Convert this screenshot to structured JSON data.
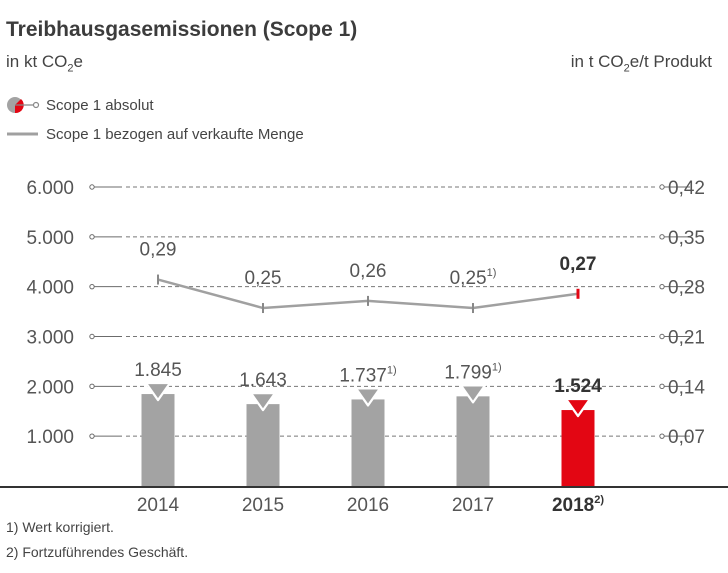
{
  "title": "Treibhausgasemissionen (Scope 1)",
  "unit_left_parts": [
    "in kt CO",
    "2",
    "e"
  ],
  "unit_right_parts": [
    "in t CO",
    "2",
    "e/t Produkt"
  ],
  "legend": [
    {
      "label": "Scope 1 absolut",
      "icon": "bar-marker-icon"
    },
    {
      "label": "Scope 1 bezogen auf verkaufte Menge",
      "icon": "line-icon"
    }
  ],
  "colors": {
    "bar": "#a3a3a3",
    "highlight": "#e30613",
    "line": "#a0a0a0",
    "axis": "#6b6b6b"
  },
  "chart_data": {
    "type": "bar",
    "title": "Treibhausgasemissionen (Scope 1)",
    "categories": [
      "2014",
      "2015",
      "2016",
      "2017",
      "2018"
    ],
    "category_superscripts": [
      "",
      "",
      "",
      "",
      "2)"
    ],
    "series": [
      {
        "name": "Scope 1 absolut",
        "type": "bar",
        "axis": "left",
        "values": [
          1845,
          1643,
          1737,
          1799,
          1524
        ],
        "labels": [
          "1.845",
          "1.643",
          "1.737",
          "1.799",
          "1.524"
        ],
        "label_superscripts": [
          "",
          "",
          "1)",
          "1)",
          ""
        ]
      },
      {
        "name": "Scope 1 bezogen auf verkaufte Menge",
        "type": "line",
        "axis": "right",
        "values": [
          0.29,
          0.25,
          0.26,
          0.25,
          0.27
        ],
        "labels": [
          "0,29",
          "0,25",
          "0,26",
          "0,25",
          "0,27"
        ],
        "label_superscripts": [
          "",
          "",
          "",
          "1)",
          ""
        ]
      }
    ],
    "highlight_index": 4,
    "y_left": {
      "ylim": [
        0,
        6000
      ],
      "ticks": [
        "1.000",
        "2.000",
        "3.000",
        "4.000",
        "5.000",
        "6.000"
      ],
      "tick_values": [
        1000,
        2000,
        3000,
        4000,
        5000,
        6000
      ]
    },
    "y_right": {
      "ylim": [
        0,
        0.42
      ],
      "ticks": [
        "0,07",
        "0,14",
        "0,21",
        "0,28",
        "0,35",
        "0,42"
      ],
      "tick_values": [
        0.07,
        0.14,
        0.21,
        0.28,
        0.35,
        0.42
      ]
    },
    "grid": true
  },
  "footnotes": [
    "1) Wert korrigiert.",
    "2) Fortzuführendes Geschäft."
  ]
}
